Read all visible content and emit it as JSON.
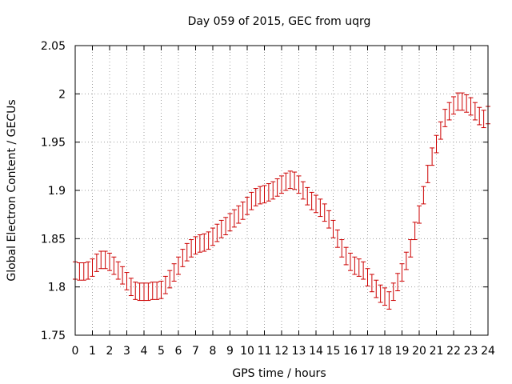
{
  "chart_data": {
    "type": "scatter",
    "title": "Day 059 of 2015, GEC from uqrg",
    "xlabel": "GPS time / hours",
    "ylabel": "Global Electron Content / GECUs",
    "xlim": [
      0,
      24
    ],
    "ylim": [
      1.75,
      2.05
    ],
    "xticks": [
      "0",
      "1",
      "2",
      "3",
      "4",
      "5",
      "6",
      "7",
      "8",
      "9",
      "10",
      "11",
      "12",
      "13",
      "14",
      "15",
      "16",
      "17",
      "18",
      "19",
      "20",
      "21",
      "22",
      "23",
      "24"
    ],
    "yticks": [
      "1.75",
      "1.8",
      "1.85",
      "1.9",
      "1.95",
      "2",
      "2.05"
    ],
    "grid": true,
    "legend": "none",
    "color": "#cc0000",
    "error": 0.009,
    "series": [
      {
        "x": [
          0,
          0.25,
          0.5,
          0.75,
          1,
          1.25,
          1.5,
          1.75,
          2,
          2.25,
          2.5,
          2.75,
          3,
          3.25,
          3.5,
          3.75,
          4,
          4.25,
          4.5,
          4.75,
          5,
          5.25,
          5.5,
          5.75,
          6,
          6.25,
          6.5,
          6.75,
          7,
          7.25,
          7.5,
          7.75,
          8,
          8.25,
          8.5,
          8.75,
          9,
          9.25,
          9.5,
          9.75,
          10,
          10.25,
          10.5,
          10.75,
          11,
          11.25,
          11.5,
          11.75,
          12,
          12.25,
          12.5,
          12.75,
          13,
          13.25,
          13.5,
          13.75,
          14,
          14.25,
          14.5,
          14.75,
          15,
          15.25,
          15.5,
          15.75,
          16,
          16.25,
          16.5,
          16.75,
          17,
          17.25,
          17.5,
          17.75,
          18,
          18.25,
          18.5,
          18.75,
          19,
          19.25,
          19.5,
          19.75,
          20,
          20.25,
          20.5,
          20.75,
          21,
          21.25,
          21.5,
          21.75,
          22,
          22.25,
          22.5,
          22.75,
          23,
          23.25,
          23.5,
          23.75,
          24
        ],
        "y": [
          1.817,
          1.816,
          1.816,
          1.817,
          1.82,
          1.825,
          1.828,
          1.828,
          1.826,
          1.822,
          1.817,
          1.812,
          1.806,
          1.8,
          1.796,
          1.795,
          1.795,
          1.795,
          1.796,
          1.796,
          1.797,
          1.802,
          1.808,
          1.815,
          1.822,
          1.83,
          1.836,
          1.84,
          1.843,
          1.845,
          1.846,
          1.848,
          1.852,
          1.856,
          1.86,
          1.863,
          1.867,
          1.871,
          1.875,
          1.879,
          1.884,
          1.889,
          1.893,
          1.895,
          1.896,
          1.898,
          1.9,
          1.903,
          1.906,
          1.909,
          1.911,
          1.91,
          1.906,
          1.9,
          1.894,
          1.889,
          1.886,
          1.882,
          1.877,
          1.87,
          1.86,
          1.85,
          1.84,
          1.832,
          1.826,
          1.822,
          1.82,
          1.817,
          1.81,
          1.804,
          1.798,
          1.793,
          1.79,
          1.786,
          1.795,
          1.805,
          1.815,
          1.827,
          1.84,
          1.858,
          1.875,
          1.895,
          1.917,
          1.935,
          1.948,
          1.962,
          1.975,
          1.982,
          1.988,
          1.992,
          1.992,
          1.99,
          1.987,
          1.982,
          1.977,
          1.974,
          1.978
        ]
      }
    ]
  }
}
